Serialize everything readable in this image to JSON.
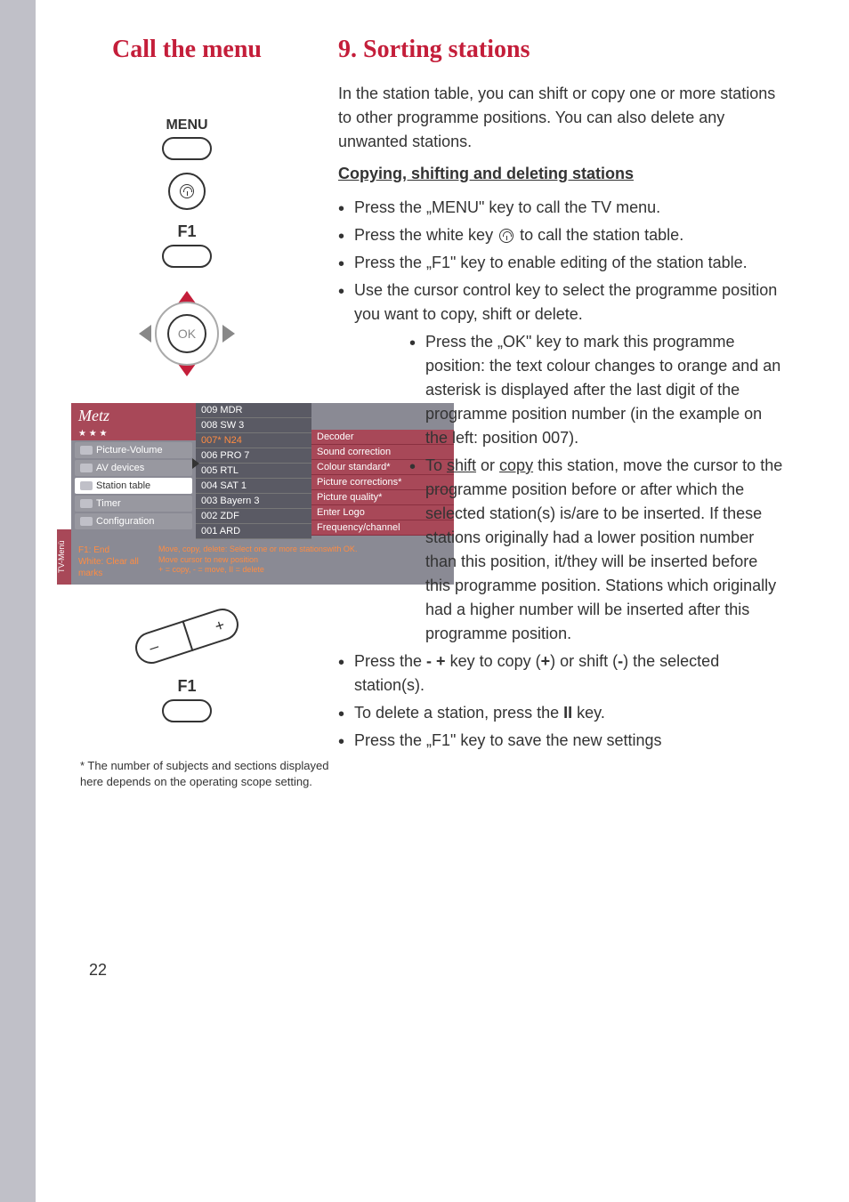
{
  "header": {
    "left_title": "Call the menu",
    "right_title": "9. Sorting stations"
  },
  "intro": "In the station table, you can shift or copy one or more stations to other programme positions. You can also delete any unwanted stations.",
  "subheading": "Copying, shifting and deleting stations",
  "bullets_top": [
    "Press the „MENU\" key to call the TV menu.",
    "Press the white key ⓘ to call the station table.",
    "Press the „F1\" key to enable editing of the station table.",
    "Use the cursor control key to select the programme position you want to copy, shift or delete."
  ],
  "bullets_indented": [
    "Press the „OK\" key to mark this programme position: the text colour changes to orange and an asterisk is displayed after the last digit of the programme position number (in the example on the left: position 007).",
    "To shift or copy this station, move the cursor to the programme position before or after which the selected station(s) is/are to be inserted. If these stations originally had a lower position number than this position, it/they will be inserted before this programme position. Stations which originally had a higher number will be inserted after this programme position."
  ],
  "bullets_bottom": [
    "Press the - + key to copy (+) or shift (-) the selected station(s).",
    "To delete a station, press the II key.",
    "Press the „F1\" key to save the new settings"
  ],
  "remote": {
    "menu_label": "MENU",
    "f1_label": "F1",
    "ok_label": "OK",
    "f1_label_2": "F1",
    "plus": "+",
    "minus": "–"
  },
  "osd": {
    "logo": "Metz",
    "stars": "★  ★  ★",
    "tv_menu_label": "TV-Menü",
    "left_items": [
      {
        "label": "Picture-Volume",
        "selected": false
      },
      {
        "label": "AV devices",
        "selected": false
      },
      {
        "label": "Station table",
        "selected": true
      },
      {
        "label": "Timer",
        "selected": false
      },
      {
        "label": "Configuration",
        "selected": false
      }
    ],
    "stations": [
      {
        "num": "009",
        "name": "MDR",
        "highlighted": false
      },
      {
        "num": "008",
        "name": "SW 3",
        "highlighted": false
      },
      {
        "num": "007*",
        "name": "N24",
        "highlighted": true
      },
      {
        "num": "006",
        "name": "PRO 7",
        "highlighted": false
      },
      {
        "num": "005",
        "name": "RTL",
        "highlighted": false
      },
      {
        "num": "004",
        "name": "SAT 1",
        "highlighted": false
      },
      {
        "num": "003",
        "name": "Bayern 3",
        "highlighted": false
      },
      {
        "num": "002",
        "name": "ZDF",
        "highlighted": false
      },
      {
        "num": "001",
        "name": "ARD",
        "highlighted": false
      }
    ],
    "options": [
      "Decoder",
      "Sound correction",
      "Colour standard*",
      "Picture corrections*",
      "Picture quality*",
      "Enter Logo",
      "Frequency/channel"
    ],
    "footer_left": "F1: End\nWhite: Clear all marks",
    "footer_right": "Move, copy, delete: Select one or more stationswith OK.\nMove cursor to new position\n+ = copy, - = move, II = delete"
  },
  "footnote": "* The number of subjects and sections displayed here depends on the operating scope setting.",
  "page_number": "22",
  "colors": {
    "heading": "#c41e3a",
    "sidebar": "#c0c0c8",
    "osd_bg": "#8a8a94",
    "osd_accent": "#a84858",
    "highlight_text": "#ff8c42"
  }
}
